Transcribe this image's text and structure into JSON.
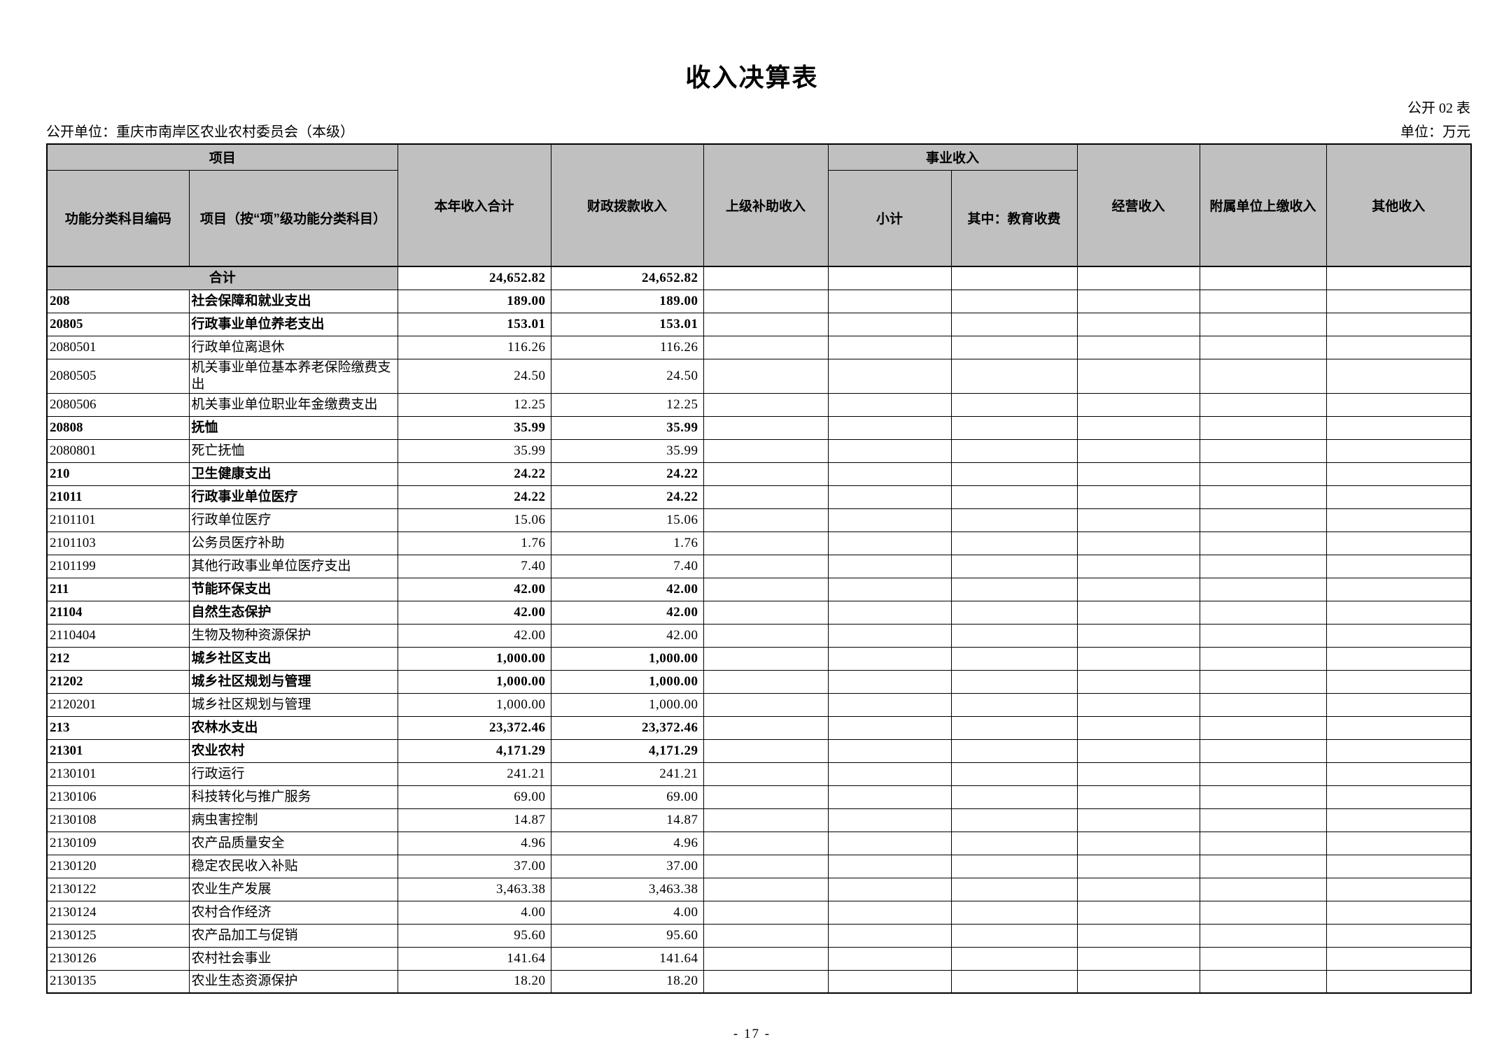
{
  "page": {
    "title": "收入决算表",
    "table_code": "公开 02 表",
    "publishing_unit": "公开单位：重庆市南岸区农业农村委员会（本级）",
    "unit_of_measure": "单位：万元",
    "page_number": "- 17 -"
  },
  "colors": {
    "header_bg": "#c0c0c0",
    "project_group_bg": "#d3d3d3",
    "border": "#000000"
  },
  "table": {
    "headers": {
      "project_group": "项目",
      "code": "功能分类科目编码",
      "project_name": "项目（按“项”级功能分类科目）",
      "total_income": "本年收入合计",
      "fiscal_appropriation": "财政拨款收入",
      "superior_subsidy": "上级补助收入",
      "business_income_group": "事业收入",
      "business_subtotal": "小计",
      "education_fees": "其中：教育收费",
      "operating_income": "经营收入",
      "affiliated_remitted_income": "附属单位上缴收入",
      "other_income": "其他收入"
    },
    "value_columns": [
      "total",
      "fiscal",
      "superior",
      "business_subtotal",
      "education_fees",
      "operating",
      "affiliated",
      "other"
    ],
    "rows": [
      {
        "type": "grand-total",
        "label": "合计",
        "total": "24,652.82",
        "fiscal": "24,652.82"
      },
      {
        "code": "208",
        "name": "社会保障和就业支出",
        "total": "189.00",
        "fiscal": "189.00",
        "level": 1
      },
      {
        "code": "20805",
        "name": "行政事业单位养老支出",
        "total": "153.01",
        "fiscal": "153.01",
        "level": 2
      },
      {
        "code": "2080501",
        "name": "行政单位离退休",
        "total": "116.26",
        "fiscal": "116.26",
        "level": 3
      },
      {
        "code": "2080505",
        "name": "机关事业单位基本养老保险缴费支出",
        "total": "24.50",
        "fiscal": "24.50",
        "level": 3
      },
      {
        "code": "2080506",
        "name": "机关事业单位职业年金缴费支出",
        "total": "12.25",
        "fiscal": "12.25",
        "level": 3
      },
      {
        "code": "20808",
        "name": "抚恤",
        "total": "35.99",
        "fiscal": "35.99",
        "level": 2
      },
      {
        "code": "2080801",
        "name": "死亡抚恤",
        "total": "35.99",
        "fiscal": "35.99",
        "level": 3
      },
      {
        "code": "210",
        "name": "卫生健康支出",
        "total": "24.22",
        "fiscal": "24.22",
        "level": 1
      },
      {
        "code": "21011",
        "name": "行政事业单位医疗",
        "total": "24.22",
        "fiscal": "24.22",
        "level": 2
      },
      {
        "code": "2101101",
        "name": "行政单位医疗",
        "total": "15.06",
        "fiscal": "15.06",
        "level": 3
      },
      {
        "code": "2101103",
        "name": "公务员医疗补助",
        "total": "1.76",
        "fiscal": "1.76",
        "level": 3
      },
      {
        "code": "2101199",
        "name": "其他行政事业单位医疗支出",
        "total": "7.40",
        "fiscal": "7.40",
        "level": 3
      },
      {
        "code": "211",
        "name": "节能环保支出",
        "total": "42.00",
        "fiscal": "42.00",
        "level": 1
      },
      {
        "code": "21104",
        "name": "自然生态保护",
        "total": "42.00",
        "fiscal": "42.00",
        "level": 2
      },
      {
        "code": "2110404",
        "name": "生物及物种资源保护",
        "total": "42.00",
        "fiscal": "42.00",
        "level": 3
      },
      {
        "code": "212",
        "name": "城乡社区支出",
        "total": "1,000.00",
        "fiscal": "1,000.00",
        "level": 1
      },
      {
        "code": "21202",
        "name": "城乡社区规划与管理",
        "total": "1,000.00",
        "fiscal": "1,000.00",
        "level": 2
      },
      {
        "code": "2120201",
        "name": "城乡社区规划与管理",
        "total": "1,000.00",
        "fiscal": "1,000.00",
        "level": 3
      },
      {
        "code": "213",
        "name": "农林水支出",
        "total": "23,372.46",
        "fiscal": "23,372.46",
        "level": 1
      },
      {
        "code": "21301",
        "name": "农业农村",
        "total": "4,171.29",
        "fiscal": "4,171.29",
        "level": 2
      },
      {
        "code": "2130101",
        "name": "行政运行",
        "total": "241.21",
        "fiscal": "241.21",
        "level": 3
      },
      {
        "code": "2130106",
        "name": "科技转化与推广服务",
        "total": "69.00",
        "fiscal": "69.00",
        "level": 3
      },
      {
        "code": "2130108",
        "name": "病虫害控制",
        "total": "14.87",
        "fiscal": "14.87",
        "level": 3
      },
      {
        "code": "2130109",
        "name": "农产品质量安全",
        "total": "4.96",
        "fiscal": "4.96",
        "level": 3
      },
      {
        "code": "2130120",
        "name": "稳定农民收入补贴",
        "total": "37.00",
        "fiscal": "37.00",
        "level": 3
      },
      {
        "code": "2130122",
        "name": "农业生产发展",
        "total": "3,463.38",
        "fiscal": "3,463.38",
        "level": 3
      },
      {
        "code": "2130124",
        "name": "农村合作经济",
        "total": "4.00",
        "fiscal": "4.00",
        "level": 3
      },
      {
        "code": "2130125",
        "name": "农产品加工与促销",
        "total": "95.60",
        "fiscal": "95.60",
        "level": 3
      },
      {
        "code": "2130126",
        "name": "农村社会事业",
        "total": "141.64",
        "fiscal": "141.64",
        "level": 3
      },
      {
        "code": "2130135",
        "name": "农业生态资源保护",
        "total": "18.20",
        "fiscal": "18.20",
        "level": 3
      }
    ]
  }
}
